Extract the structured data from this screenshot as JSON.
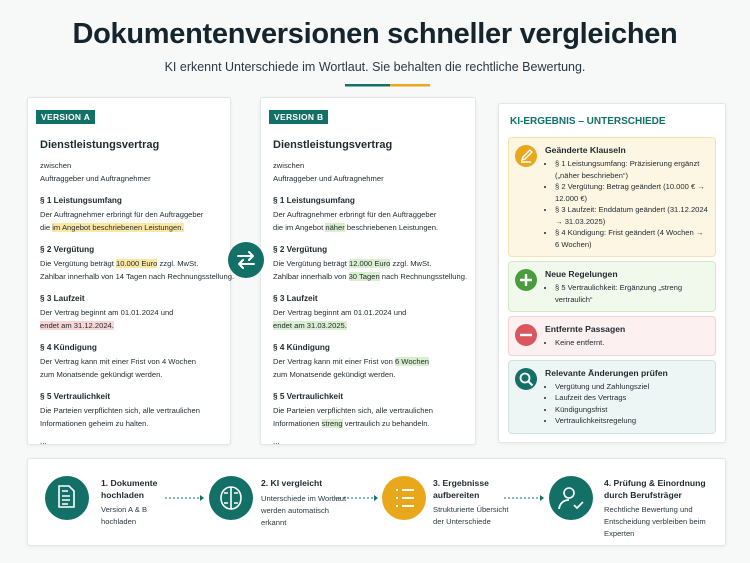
{
  "header": {
    "title": "Dokumentenversionen schneller vergleichen",
    "subtitle": "KI erkennt Unterschiede im Wortlaut. Sie behalten die rechtliche Bewertung."
  },
  "versions": [
    {
      "badge": "VERSION A",
      "title": "Dienstleistungsvertrag",
      "parties": [
        "zwischen",
        "Auftraggeber und Auftragnehmer"
      ],
      "sections": [
        {
          "heading": "§ 1 Leistungsumfang",
          "lines": [
            [
              "Der Auftragnehmer erbringt für den Auftraggeber"
            ],
            [
              "die ",
              {
                "text": "im Angebot beschriebenen Leistungen.",
                "hl": "yellow"
              }
            ]
          ]
        },
        {
          "heading": "§ 2 Vergütung",
          "lines": [
            [
              "Die Vergütung beträgt ",
              {
                "text": "10.000 Euro",
                "hl": "yellow"
              },
              " zzgl. MwSt."
            ],
            [
              "Zahlbar innerhalb von 14 Tagen nach Rechnungsstellung."
            ]
          ]
        },
        {
          "heading": "§ 3 Laufzeit",
          "lines": [
            [
              "Der Vertrag beginnt am 01.01.2024 und"
            ],
            [
              {
                "text": "endet am 31.12.2024.",
                "hl": "red"
              }
            ]
          ]
        },
        {
          "heading": "§ 4 Kündigung",
          "lines": [
            [
              "Der Vertrag kann mit einer Frist von 4 Wochen"
            ],
            [
              "zum Monatsende gekündigt werden."
            ]
          ]
        },
        {
          "heading": "§ 5 Vertraulichkeit",
          "lines": [
            [
              "Die Parteien verpflichten sich, alle vertraulichen"
            ],
            [
              "Informationen geheim zu halten."
            ]
          ]
        }
      ],
      "ellipsis": "..."
    },
    {
      "badge": "VERSION B",
      "title": "Dienstleistungsvertrag",
      "parties": [
        "zwischen",
        "Auftraggeber und Auftragnehmer"
      ],
      "sections": [
        {
          "heading": "§ 1 Leistungsumfang",
          "lines": [
            [
              "Der Auftragnehmer erbringt für den Auftraggeber"
            ],
            [
              "die im Angebot ",
              {
                "text": "näher",
                "hl": "green"
              },
              " beschriebenen Leistungen."
            ]
          ]
        },
        {
          "heading": "§ 2 Vergütung",
          "lines": [
            [
              "Die Vergütung beträgt ",
              {
                "text": "12.000 Euro",
                "hl": "green"
              },
              " zzgl. MwSt."
            ],
            [
              "Zahlbar innerhalb von ",
              {
                "text": "30 Tagen",
                "hl": "green"
              },
              " nach Rechnungsstellung."
            ]
          ]
        },
        {
          "heading": "§ 3 Laufzeit",
          "lines": [
            [
              "Der Vertrag beginnt am 01.01.2024 und"
            ],
            [
              {
                "text": "endet am 31.03.2025.",
                "hl": "green"
              }
            ]
          ]
        },
        {
          "heading": "§ 4 Kündigung",
          "lines": [
            [
              "Der Vertrag kann mit einer Frist von ",
              {
                "text": "6 Wochen",
                "hl": "green"
              }
            ],
            [
              "zum Monatsende gekündigt werden."
            ]
          ]
        },
        {
          "heading": "§ 5 Vertraulichkeit",
          "lines": [
            [
              "Die Parteien verpflichten sich, alle vertraulichen"
            ],
            [
              "Informationen ",
              {
                "text": "streng",
                "hl": "green"
              },
              " vertraulich zu behandeln."
            ]
          ]
        }
      ],
      "ellipsis": "..."
    }
  ],
  "result": {
    "title": "KI-ERGEBNIS – UNTERSCHIEDE",
    "groups": [
      {
        "heading": "Geänderte Klauseln",
        "kind": "changed",
        "items": [
          "§ 1 Leistungsumfang: Präzisierung ergänzt („näher beschrieben“)",
          "§ 2 Vergütung: Betrag geändert (10.000 € → 12.000 €)",
          "§ 3 Laufzeit: Enddatum geändert (31.12.2024 → 31.03.2025)",
          "§ 4 Kündigung: Frist geändert (4 Wochen → 6 Wochen)"
        ]
      },
      {
        "heading": "Neue Regelungen",
        "kind": "new",
        "items": [
          "§ 5 Vertraulichkeit: Ergänzung „streng vertraulich“"
        ]
      },
      {
        "heading": "Entfernte Passagen",
        "kind": "removed",
        "items": [
          "Keine entfernt."
        ]
      },
      {
        "heading": "Relevante Änderungen prüfen",
        "kind": "review",
        "items": [
          "Vergütung und Zahlungsziel",
          "Laufzeit des Vertrags",
          "Kündigungsfrist",
          "Vertraulichkeitsregelung"
        ]
      }
    ]
  },
  "steps": [
    {
      "title": "1. Dokumente hochladen",
      "text": "Version A & B hochladen"
    },
    {
      "title": "2. KI vergleicht",
      "text": "Unterschiede im Wortlaut werden automatisch erkannt"
    },
    {
      "title": "3. Ergebnisse aufbereiten",
      "text": "Strukturierte Übersicht der Unterschiede"
    },
    {
      "title": "4. Prüfung & Einordnung durch Berufsträger",
      "text": "Rechtliche Bewertung und Entscheidung verbleiben beim Experten"
    }
  ]
}
